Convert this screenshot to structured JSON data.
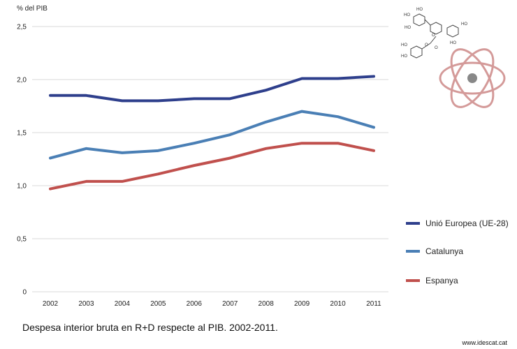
{
  "chart_data": {
    "type": "line",
    "ylabel": "% del PIB",
    "xlabel": "",
    "title": "Despesa interior bruta en R+D respecte al PIB. 2002-2011.",
    "categories": [
      "2002",
      "2003",
      "2004",
      "2005",
      "2006",
      "2007",
      "2008",
      "2009",
      "2010",
      "2011"
    ],
    "ylim": [
      0,
      2.5
    ],
    "yticks": [
      "0",
      "0,5",
      "1,0",
      "1,5",
      "2,0",
      "2,5"
    ],
    "grid": true,
    "legend_position": "right",
    "series": [
      {
        "name": "Unió Europea (UE-28)",
        "color": "#2e3f8c",
        "values": [
          1.85,
          1.85,
          1.8,
          1.8,
          1.82,
          1.82,
          1.9,
          2.01,
          2.01,
          2.03
        ]
      },
      {
        "name": "Catalunya",
        "color": "#4a7fb5",
        "values": [
          1.26,
          1.35,
          1.31,
          1.33,
          1.4,
          1.48,
          1.6,
          1.7,
          1.65,
          1.55
        ]
      },
      {
        "name": "Espanya",
        "color": "#c0504d",
        "values": [
          0.97,
          1.04,
          1.04,
          1.11,
          1.19,
          1.26,
          1.35,
          1.4,
          1.4,
          1.33
        ]
      }
    ]
  },
  "source": "www.idescat.cat",
  "decor": {
    "molecule_labels": [
      "HO",
      "HO",
      "HO",
      "HO",
      "HO",
      "HO",
      "HO",
      "O",
      "O",
      "O"
    ]
  }
}
